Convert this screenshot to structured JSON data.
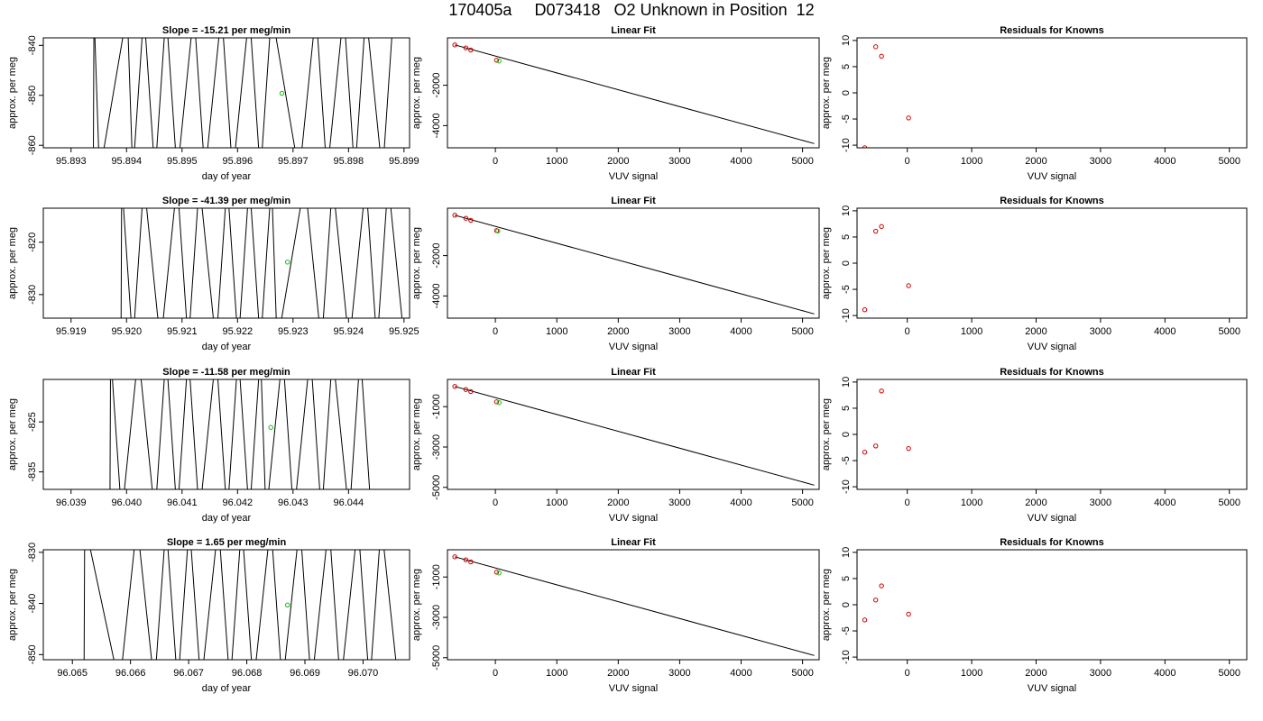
{
  "page_title": "170405a     D073418   O2 Unknown in Position  12",
  "colors": {
    "axes": "#000000",
    "line": "#000000",
    "known_points": "#cc0000",
    "unknown_points": "#00cc00",
    "background": "#ffffff"
  },
  "chart_data": [
    {
      "row": 1,
      "panels": [
        {
          "type": "line",
          "title": "Slope =  -15.21  per meg/min",
          "xlabel": "day of year",
          "ylabel": "approx. per meg",
          "xlim": [
            95.8925,
            95.8991
          ],
          "ylim": [
            -860.5,
            -838.5
          ],
          "xticks": [
            95.893,
            95.894,
            95.895,
            95.896,
            95.897,
            95.898,
            95.899
          ],
          "xtick_labels": [
            "95.893",
            "95.894",
            "95.895",
            "95.896",
            "95.897",
            "95.898",
            "95.899"
          ],
          "yticks": [
            -860,
            -850,
            -840
          ],
          "ytick_labels": [
            "-860",
            "-850",
            "-840"
          ],
          "trace_x": [
            95.8934,
            95.8935,
            95.894,
            95.8941,
            95.8943,
            95.8945,
            95.8947,
            95.8949,
            95.8952,
            95.8954,
            95.8957,
            95.8959,
            95.8962,
            95.8964,
            95.8966,
            95.8971,
            95.8974,
            95.8976,
            95.8979,
            95.8981,
            95.8983,
            95.8986,
            95.8988
          ],
          "marker": {
            "x": 95.8968,
            "y": -849.6
          }
        },
        {
          "type": "scatter",
          "title": "Linear Fit",
          "xlabel": "VUV signal",
          "ylabel": "approx. per meg",
          "xlim": [
            -780,
            5270
          ],
          "ylim": [
            -5100,
            350
          ],
          "xticks": [
            0,
            1000,
            2000,
            3000,
            4000,
            5000
          ],
          "xtick_labels": [
            "0",
            "1000",
            "2000",
            "3000",
            "4000",
            "5000"
          ],
          "yticks": [
            -4000,
            -2000
          ],
          "ytick_labels": [
            "-4000",
            "-2000"
          ],
          "fit_line": [
            [
              -660,
              0
            ],
            [
              5190,
              -4890
            ]
          ],
          "knowns": [
            [
              -660,
              0
            ],
            [
              -480,
              -150
            ],
            [
              -400,
              -250
            ],
            [
              20,
              -760
            ]
          ],
          "unknowns": [
            [
              60,
              -800
            ]
          ]
        },
        {
          "type": "scatter",
          "title": "Residuals for Knowns",
          "xlabel": "VUV signal",
          "ylabel": "approx. per meg",
          "xlim": [
            -780,
            5270
          ],
          "ylim": [
            -10.5,
            10.5
          ],
          "xticks": [
            0,
            1000,
            2000,
            3000,
            4000,
            5000
          ],
          "xtick_labels": [
            "0",
            "1000",
            "2000",
            "3000",
            "4000",
            "5000"
          ],
          "yticks": [
            -10,
            -5,
            0,
            5,
            10
          ],
          "ytick_labels": [
            "-10",
            "-5",
            "0",
            "5",
            "10"
          ],
          "points": [
            [
              -660,
              -10.5
            ],
            [
              -490,
              8.8
            ],
            [
              -400,
              7.0
            ],
            [
              20,
              -4.8
            ]
          ]
        }
      ]
    },
    {
      "row": 2,
      "panels": [
        {
          "type": "line",
          "title": "Slope =  -41.39  per meg/min",
          "xlabel": "day of year",
          "ylabel": "approx. per meg",
          "xlim": [
            95.9185,
            95.9251
          ],
          "ylim": [
            -834.5,
            -813.5
          ],
          "xticks": [
            95.919,
            95.92,
            95.921,
            95.922,
            95.923,
            95.924,
            95.925
          ],
          "xtick_labels": [
            "95.919",
            "95.920",
            "95.921",
            "95.922",
            "95.923",
            "95.924",
            "95.925"
          ],
          "yticks": [
            -830,
            -820
          ],
          "ytick_labels": [
            "-830",
            "-820"
          ],
          "trace_x": [
            95.9199,
            95.9201,
            95.9203,
            95.9206,
            95.9209,
            95.9211,
            95.9213,
            95.9216,
            95.9218,
            95.922,
            95.9222,
            95.9224,
            95.9226,
            95.9227,
            95.9232,
            95.9235,
            95.9237,
            95.924,
            95.9243,
            95.9245,
            95.9247,
            95.925
          ],
          "marker": {
            "x": 95.9229,
            "y": -823.8
          }
        },
        {
          "type": "scatter",
          "title": "Linear Fit",
          "xlabel": "VUV signal",
          "ylabel": "approx. per meg",
          "xlim": [
            -780,
            5270
          ],
          "ylim": [
            -5100,
            350
          ],
          "xticks": [
            0,
            1000,
            2000,
            3000,
            4000,
            5000
          ],
          "xtick_labels": [
            "0",
            "1000",
            "2000",
            "3000",
            "4000",
            "5000"
          ],
          "yticks": [
            -4000,
            -2000
          ],
          "ytick_labels": [
            "-4000",
            "-2000"
          ],
          "fit_line": [
            [
              -660,
              0
            ],
            [
              5190,
              -4890
            ]
          ],
          "knowns": [
            [
              -660,
              0
            ],
            [
              -480,
              -150
            ],
            [
              -400,
              -250
            ],
            [
              20,
              -760
            ]
          ],
          "unknowns": [
            [
              40,
              -780
            ]
          ]
        },
        {
          "type": "scatter",
          "title": "Residuals for Knowns",
          "xlabel": "VUV signal",
          "ylabel": "approx. per meg",
          "xlim": [
            -780,
            5270
          ],
          "ylim": [
            -10.5,
            10.5
          ],
          "xticks": [
            0,
            1000,
            2000,
            3000,
            4000,
            5000
          ],
          "xtick_labels": [
            "0",
            "1000",
            "2000",
            "3000",
            "4000",
            "5000"
          ],
          "yticks": [
            -10,
            -5,
            0,
            5,
            10
          ],
          "ytick_labels": [
            "-10",
            "-5",
            "0",
            "5",
            "10"
          ],
          "points": [
            [
              -660,
              -8.9
            ],
            [
              -490,
              6.1
            ],
            [
              -400,
              7.0
            ],
            [
              20,
              -4.3
            ]
          ]
        }
      ]
    },
    {
      "row": 3,
      "panels": [
        {
          "type": "line",
          "title": "Slope =  -11.58  per meg/min",
          "xlabel": "day of year",
          "ylabel": "approx. per meg",
          "xlim": [
            96.0385,
            96.0451
          ],
          "ylim": [
            -838.5,
            -816.5
          ],
          "xticks": [
            96.039,
            96.04,
            96.041,
            96.042,
            96.043,
            96.044
          ],
          "xtick_labels": [
            "96.039",
            "96.040",
            "96.041",
            "96.042",
            "96.043",
            "96.044"
          ],
          "yticks": [
            -835,
            -825
          ],
          "ytick_labels": [
            "-835",
            "-825"
          ],
          "trace_x": [
            96.0397,
            96.0399,
            96.0402,
            96.0405,
            96.0407,
            96.0409,
            96.0411,
            96.0413,
            96.0416,
            96.0418,
            96.042,
            96.0422,
            96.0424,
            96.0425,
            96.0428,
            96.043,
            96.0433,
            96.0435,
            96.0437,
            96.044,
            96.0442,
            96.0444
          ],
          "marker": {
            "x": 96.0426,
            "y": -826.1
          }
        },
        {
          "type": "scatter",
          "title": "Linear Fit",
          "xlabel": "VUV signal",
          "ylabel": "approx. per meg",
          "xlim": [
            -780,
            5270
          ],
          "ylim": [
            -5100,
            350
          ],
          "xticks": [
            0,
            1000,
            2000,
            3000,
            4000,
            5000
          ],
          "xtick_labels": [
            "0",
            "1000",
            "2000",
            "3000",
            "4000",
            "5000"
          ],
          "yticks": [
            -5000,
            -3000,
            -1000
          ],
          "ytick_labels": [
            "-5000",
            "-3000",
            "-1000"
          ],
          "fit_line": [
            [
              -660,
              0
            ],
            [
              5190,
              -4890
            ]
          ],
          "knowns": [
            [
              -660,
              0
            ],
            [
              -480,
              -150
            ],
            [
              -400,
              -250
            ],
            [
              20,
              -760
            ]
          ],
          "unknowns": [
            [
              60,
              -800
            ]
          ]
        },
        {
          "type": "scatter",
          "title": "Residuals for Knowns",
          "xlabel": "VUV signal",
          "ylabel": "approx. per meg",
          "xlim": [
            -780,
            5270
          ],
          "ylim": [
            -10.5,
            10.5
          ],
          "xticks": [
            0,
            1000,
            2000,
            3000,
            4000,
            5000
          ],
          "xtick_labels": [
            "0",
            "1000",
            "2000",
            "3000",
            "4000",
            "5000"
          ],
          "yticks": [
            -10,
            -5,
            0,
            5,
            10
          ],
          "ytick_labels": [
            "-10",
            "-5",
            "0",
            "5",
            "10"
          ],
          "points": [
            [
              -660,
              -3.4
            ],
            [
              -490,
              -2.2
            ],
            [
              -400,
              8.3
            ],
            [
              20,
              -2.7
            ]
          ]
        }
      ]
    },
    {
      "row": 4,
      "panels": [
        {
          "type": "line",
          "title": "Slope =  1.65  per meg/min",
          "xlabel": "day of year",
          "ylabel": "approx. per meg",
          "xlim": [
            96.0645,
            96.0708
          ],
          "ylim": [
            -851,
            -829.5
          ],
          "xticks": [
            96.065,
            96.066,
            96.067,
            96.068,
            96.069,
            96.07
          ],
          "xtick_labels": [
            "96.065",
            "96.066",
            "96.067",
            "96.068",
            "96.069",
            "96.070"
          ],
          "yticks": [
            -850,
            -840,
            -830
          ],
          "ytick_labels": [
            "-850",
            "-840",
            "-830"
          ],
          "trace_x": [
            96.0652,
            96.0658,
            96.0661,
            96.0664,
            96.0666,
            96.0668,
            96.067,
            96.0672,
            96.0675,
            96.0677,
            96.0679,
            96.0681,
            96.0684,
            96.0686,
            96.0689,
            96.0691,
            96.0694,
            96.0696,
            96.0699,
            96.0701,
            96.0703,
            96.0706
          ],
          "marker": {
            "x": 96.0687,
            "y": -840.3
          }
        },
        {
          "type": "scatter",
          "title": "Linear Fit",
          "xlabel": "VUV signal",
          "ylabel": "approx. per meg",
          "xlim": [
            -780,
            5270
          ],
          "ylim": [
            -5100,
            350
          ],
          "xticks": [
            0,
            1000,
            2000,
            3000,
            4000,
            5000
          ],
          "xtick_labels": [
            "0",
            "1000",
            "2000",
            "3000",
            "4000",
            "5000"
          ],
          "yticks": [
            -5000,
            -3000,
            -1000
          ],
          "ytick_labels": [
            "-5000",
            "-3000",
            "-1000"
          ],
          "fit_line": [
            [
              -660,
              0
            ],
            [
              5190,
              -4890
            ]
          ],
          "knowns": [
            [
              -660,
              0
            ],
            [
              -480,
              -150
            ],
            [
              -400,
              -250
            ],
            [
              20,
              -760
            ]
          ],
          "unknowns": [
            [
              60,
              -800
            ]
          ]
        },
        {
          "type": "scatter",
          "title": "Residuals for Knowns",
          "xlabel": "VUV signal",
          "ylabel": "approx. per meg",
          "xlim": [
            -780,
            5270
          ],
          "ylim": [
            -10.5,
            10.5
          ],
          "xticks": [
            0,
            1000,
            2000,
            3000,
            4000,
            5000
          ],
          "xtick_labels": [
            "0",
            "1000",
            "2000",
            "3000",
            "4000",
            "5000"
          ],
          "yticks": [
            -10,
            -5,
            0,
            5,
            10
          ],
          "ytick_labels": [
            "-10",
            "-5",
            "0",
            "5",
            "10"
          ],
          "points": [
            [
              -660,
              -2.9
            ],
            [
              -490,
              0.9
            ],
            [
              -400,
              3.6
            ],
            [
              20,
              -1.8
            ]
          ]
        }
      ]
    }
  ]
}
